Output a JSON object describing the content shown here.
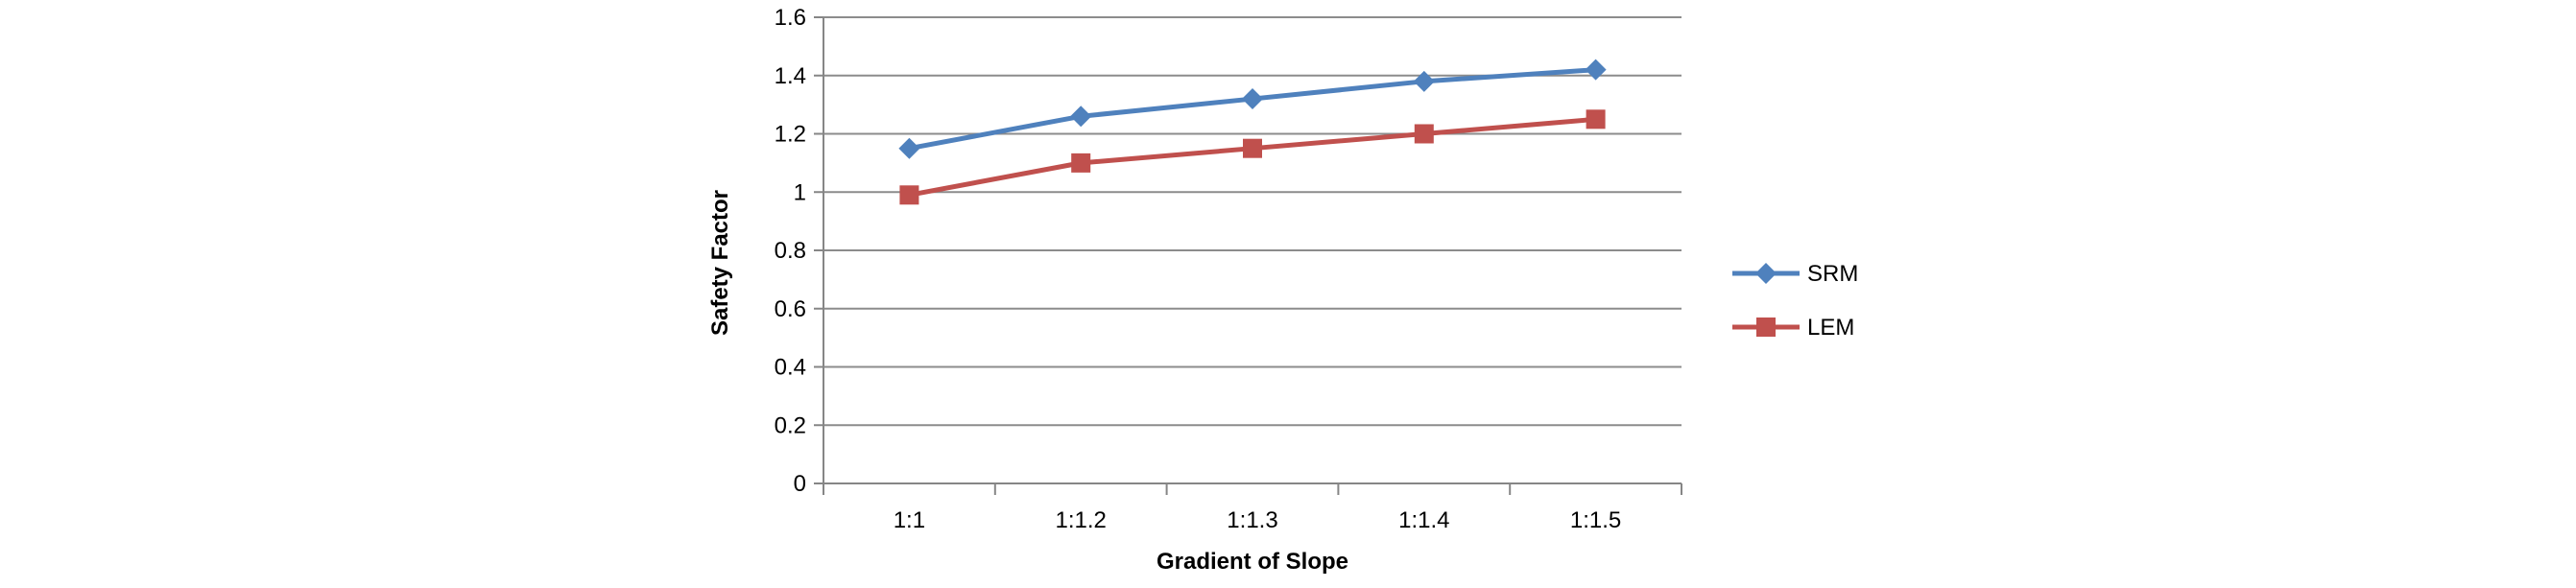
{
  "chart_data": {
    "type": "line",
    "title": "",
    "xlabel": "Gradient of Slope",
    "ylabel": "Safety Factor",
    "categories": [
      "1:1",
      "1:1.2",
      "1:1.3",
      "1:1.4",
      "1:1.5"
    ],
    "ylim": [
      0,
      1.6
    ],
    "yticks": [
      "0",
      "0.2",
      "0.4",
      "0.6",
      "0.8",
      "1",
      "1.2",
      "1.4",
      "1.6"
    ],
    "grid": true,
    "legend_position": "right",
    "series": [
      {
        "name": "SRM",
        "values": [
          1.15,
          1.26,
          1.32,
          1.38,
          1.42
        ],
        "color": "#4F81BD",
        "marker": "diamond"
      },
      {
        "name": "LEM",
        "values": [
          0.99,
          1.1,
          1.15,
          1.2,
          1.25
        ],
        "color": "#C0504D",
        "marker": "square"
      }
    ]
  }
}
